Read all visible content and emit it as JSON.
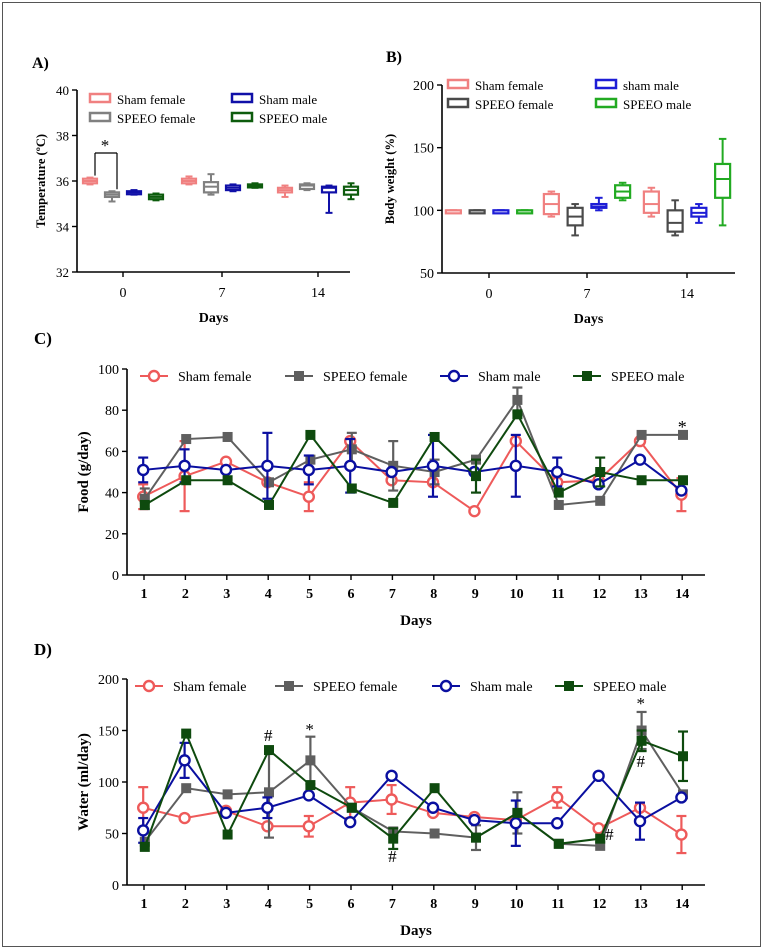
{
  "colors": {
    "sham_female": "#ee5a5a",
    "speeo_female": "#5f5f5f",
    "sham_male": "#0a0fa0",
    "speeo_male": "#0e4a0e",
    "sham_female_box": "#f08080",
    "speeo_female_box": "#808080",
    "sham_male_box": "#1010a8",
    "speeo_male_box": "#0d5c0d",
    "b_speeo_female": "#4a4a4a",
    "b_sham_male": "#1d1dd6",
    "b_speeo_male": "#22aa22"
  },
  "chart_data": [
    {
      "id": "A",
      "panel_label": "A)",
      "type": "box",
      "ylabel": "Temperature (ºC)",
      "xlabel": "Days",
      "ylim": [
        32,
        40
      ],
      "yticks": [
        "32",
        "34",
        "36",
        "38",
        "40"
      ],
      "categories": [
        "0",
        "7",
        "14"
      ],
      "legend": [
        "Sham female",
        "Sham male",
        "SPEEO female",
        "SPEEO male"
      ],
      "series": [
        {
          "name": "Sham female",
          "color_key": "sham_female_box",
          "boxes": [
            {
              "min": 35.85,
              "q1": 35.9,
              "med": 36.0,
              "q3": 36.1,
              "max": 36.15
            },
            {
              "min": 35.85,
              "q1": 35.9,
              "med": 36.0,
              "q3": 36.1,
              "max": 36.2
            },
            {
              "min": 35.3,
              "q1": 35.5,
              "med": 35.6,
              "q3": 35.7,
              "max": 35.8
            }
          ]
        },
        {
          "name": "SPEEO female",
          "color_key": "speeo_female_box",
          "boxes": [
            {
              "min": 35.1,
              "q1": 35.3,
              "med": 35.4,
              "q3": 35.5,
              "max": 35.55
            },
            {
              "min": 35.4,
              "q1": 35.5,
              "med": 35.75,
              "q3": 35.95,
              "max": 36.3
            },
            {
              "min": 35.6,
              "q1": 35.65,
              "med": 35.8,
              "q3": 35.85,
              "max": 35.9
            }
          ]
        },
        {
          "name": "Sham male",
          "color_key": "sham_male_box",
          "boxes": [
            {
              "min": 35.4,
              "q1": 35.45,
              "med": 35.5,
              "q3": 35.55,
              "max": 35.6
            },
            {
              "min": 35.55,
              "q1": 35.6,
              "med": 35.7,
              "q3": 35.8,
              "max": 35.85
            },
            {
              "min": 34.6,
              "q1": 35.5,
              "med": 35.7,
              "q3": 35.75,
              "max": 35.8
            }
          ]
        },
        {
          "name": "SPEEO male",
          "color_key": "speeo_male_box",
          "boxes": [
            {
              "min": 35.15,
              "q1": 35.2,
              "med": 35.3,
              "q3": 35.4,
              "max": 35.45
            },
            {
              "min": 35.7,
              "q1": 35.72,
              "med": 35.78,
              "q3": 35.85,
              "max": 35.9
            },
            {
              "min": 35.2,
              "q1": 35.4,
              "med": 35.6,
              "q3": 35.75,
              "max": 35.9
            }
          ]
        }
      ],
      "annotation": "*"
    },
    {
      "id": "B",
      "panel_label": "B)",
      "type": "box",
      "ylabel": "Body weight (%)",
      "xlabel": "Days",
      "ylim": [
        50,
        200
      ],
      "yticks": [
        "50",
        "100",
        "150",
        "200"
      ],
      "categories": [
        "0",
        "7",
        "14"
      ],
      "legend": [
        "Sham female",
        "sham male",
        "SPEEO  female",
        "SPEEO male"
      ],
      "series": [
        {
          "name": "Sham female",
          "color_key": "sham_female_box",
          "boxes": [
            {
              "min": 100,
              "q1": 100,
              "med": 100,
              "q3": 100,
              "max": 100
            },
            {
              "min": 95,
              "q1": 97,
              "med": 105,
              "q3": 113,
              "max": 115
            },
            {
              "min": 95,
              "q1": 98,
              "med": 105,
              "q3": 115,
              "max": 118
            }
          ]
        },
        {
          "name": "SPEEO  female",
          "color_key": "b_speeo_female",
          "boxes": [
            {
              "min": 100,
              "q1": 100,
              "med": 100,
              "q3": 100,
              "max": 100
            },
            {
              "min": 80,
              "q1": 88,
              "med": 95,
              "q3": 102,
              "max": 105
            },
            {
              "min": 80,
              "q1": 83,
              "med": 90,
              "q3": 100,
              "max": 108
            }
          ]
        },
        {
          "name": "sham male",
          "color_key": "b_sham_male",
          "boxes": [
            {
              "min": 100,
              "q1": 100,
              "med": 100,
              "q3": 100,
              "max": 100
            },
            {
              "min": 100,
              "q1": 102,
              "med": 103,
              "q3": 105,
              "max": 110
            },
            {
              "min": 90,
              "q1": 95,
              "med": 98,
              "q3": 102,
              "max": 105
            }
          ]
        },
        {
          "name": "SPEEO male",
          "color_key": "b_speeo_male",
          "boxes": [
            {
              "min": 100,
              "q1": 100,
              "med": 100,
              "q3": 100,
              "max": 100
            },
            {
              "min": 108,
              "q1": 110,
              "med": 115,
              "q3": 120,
              "max": 122
            },
            {
              "min": 88,
              "q1": 110,
              "med": 125,
              "q3": 137,
              "max": 157
            }
          ]
        }
      ]
    },
    {
      "id": "C",
      "panel_label": "C)",
      "type": "line",
      "ylabel": "Food (g/day)",
      "xlabel": "Days",
      "ylim": [
        0,
        100
      ],
      "yticks": [
        "0",
        "20",
        "40",
        "60",
        "80",
        "100"
      ],
      "x": [
        "1",
        "2",
        "3",
        "4",
        "5",
        "6",
        "7",
        "8",
        "9",
        "10",
        "11",
        "12",
        "13",
        "14"
      ],
      "series": [
        {
          "name": "Sham female",
          "marker": "circle-open",
          "color_key": "sham_female",
          "values": [
            38,
            48,
            55,
            45,
            38,
            65,
            46,
            45,
            31,
            65,
            45,
            46,
            65,
            39
          ],
          "errors": [
            6,
            17,
            0,
            0,
            7,
            0,
            0,
            0,
            0,
            0,
            0,
            0,
            0,
            8
          ]
        },
        {
          "name": "SPEEO female",
          "marker": "square",
          "color_key": "speeo_female",
          "values": [
            37,
            66,
            67,
            45,
            56,
            61,
            53,
            50,
            56,
            85,
            34,
            36,
            68,
            68
          ],
          "errors": [
            5,
            0,
            0,
            0,
            0,
            8,
            12,
            6,
            0,
            6,
            0,
            0,
            0,
            0
          ]
        },
        {
          "name": "Sham male",
          "marker": "circle-open",
          "color_key": "sham_male",
          "values": [
            51,
            53,
            51,
            53,
            51,
            53,
            50,
            53,
            50,
            53,
            50,
            44,
            56,
            41
          ],
          "errors": [
            6,
            8,
            0,
            16,
            7,
            13,
            0,
            15,
            0,
            15,
            7,
            0,
            0,
            0
          ]
        },
        {
          "name": "SPEEO male",
          "marker": "square",
          "color_key": "speeo_male",
          "values": [
            34,
            46,
            46,
            34,
            68,
            42,
            35,
            67,
            48,
            78,
            40,
            50,
            46,
            46
          ],
          "errors": [
            0,
            0,
            0,
            0,
            0,
            0,
            0,
            0,
            8,
            0,
            0,
            7,
            0,
            0
          ]
        }
      ],
      "annotations": [
        {
          "x": "14",
          "text": "*"
        }
      ]
    },
    {
      "id": "D",
      "panel_label": "D)",
      "type": "line",
      "ylabel": "Water (ml/day)",
      "xlabel": "Days",
      "ylim": [
        0,
        200
      ],
      "yticks": [
        "0",
        "50",
        "100",
        "150",
        "200"
      ],
      "x": [
        "1",
        "2",
        "3",
        "4",
        "5",
        "6",
        "7",
        "8",
        "9",
        "10",
        "11",
        "12",
        "13",
        "14"
      ],
      "series": [
        {
          "name": "Sham female",
          "marker": "circle-open",
          "color_key": "sham_female",
          "values": [
            75,
            65,
            72,
            57,
            57,
            80,
            83,
            70,
            66,
            63,
            85,
            55,
            75,
            49
          ],
          "errors": [
            20,
            0,
            0,
            0,
            10,
            15,
            14,
            0,
            0,
            0,
            10,
            0,
            0,
            18
          ]
        },
        {
          "name": "SPEEO female",
          "marker": "square",
          "color_key": "speeo_female",
          "values": [
            42,
            94,
            88,
            90,
            121,
            75,
            52,
            50,
            46,
            70,
            40,
            38,
            150,
            88
          ],
          "errors": [
            0,
            0,
            0,
            44,
            23,
            0,
            0,
            0,
            12,
            20,
            0,
            0,
            18,
            0
          ]
        },
        {
          "name": "Sham male",
          "marker": "circle-open",
          "color_key": "sham_male",
          "values": [
            53,
            121,
            70,
            75,
            87,
            61,
            106,
            75,
            63,
            60,
            60,
            106,
            62,
            85
          ],
          "errors": [
            12,
            17,
            0,
            10,
            0,
            0,
            0,
            0,
            0,
            22,
            0,
            0,
            18,
            0
          ]
        },
        {
          "name": "SPEEO male",
          "marker": "square",
          "color_key": "speeo_male",
          "values": [
            37,
            147,
            49,
            131,
            97,
            75,
            45,
            94,
            46,
            70,
            40,
            45,
            140,
            125
          ],
          "errors": [
            0,
            0,
            0,
            0,
            0,
            0,
            10,
            0,
            0,
            0,
            0,
            0,
            10,
            24
          ]
        }
      ],
      "annotations": [
        {
          "x": "4",
          "text": "#",
          "pos": "above"
        },
        {
          "x": "5",
          "text": "*",
          "pos": "above"
        },
        {
          "x": "7",
          "text": "#",
          "pos": "below"
        },
        {
          "x": "12",
          "text": "#",
          "pos": "right"
        },
        {
          "x": "13",
          "text": "*",
          "pos": "above"
        },
        {
          "x": "13",
          "text": "#",
          "pos": "below"
        }
      ]
    }
  ]
}
